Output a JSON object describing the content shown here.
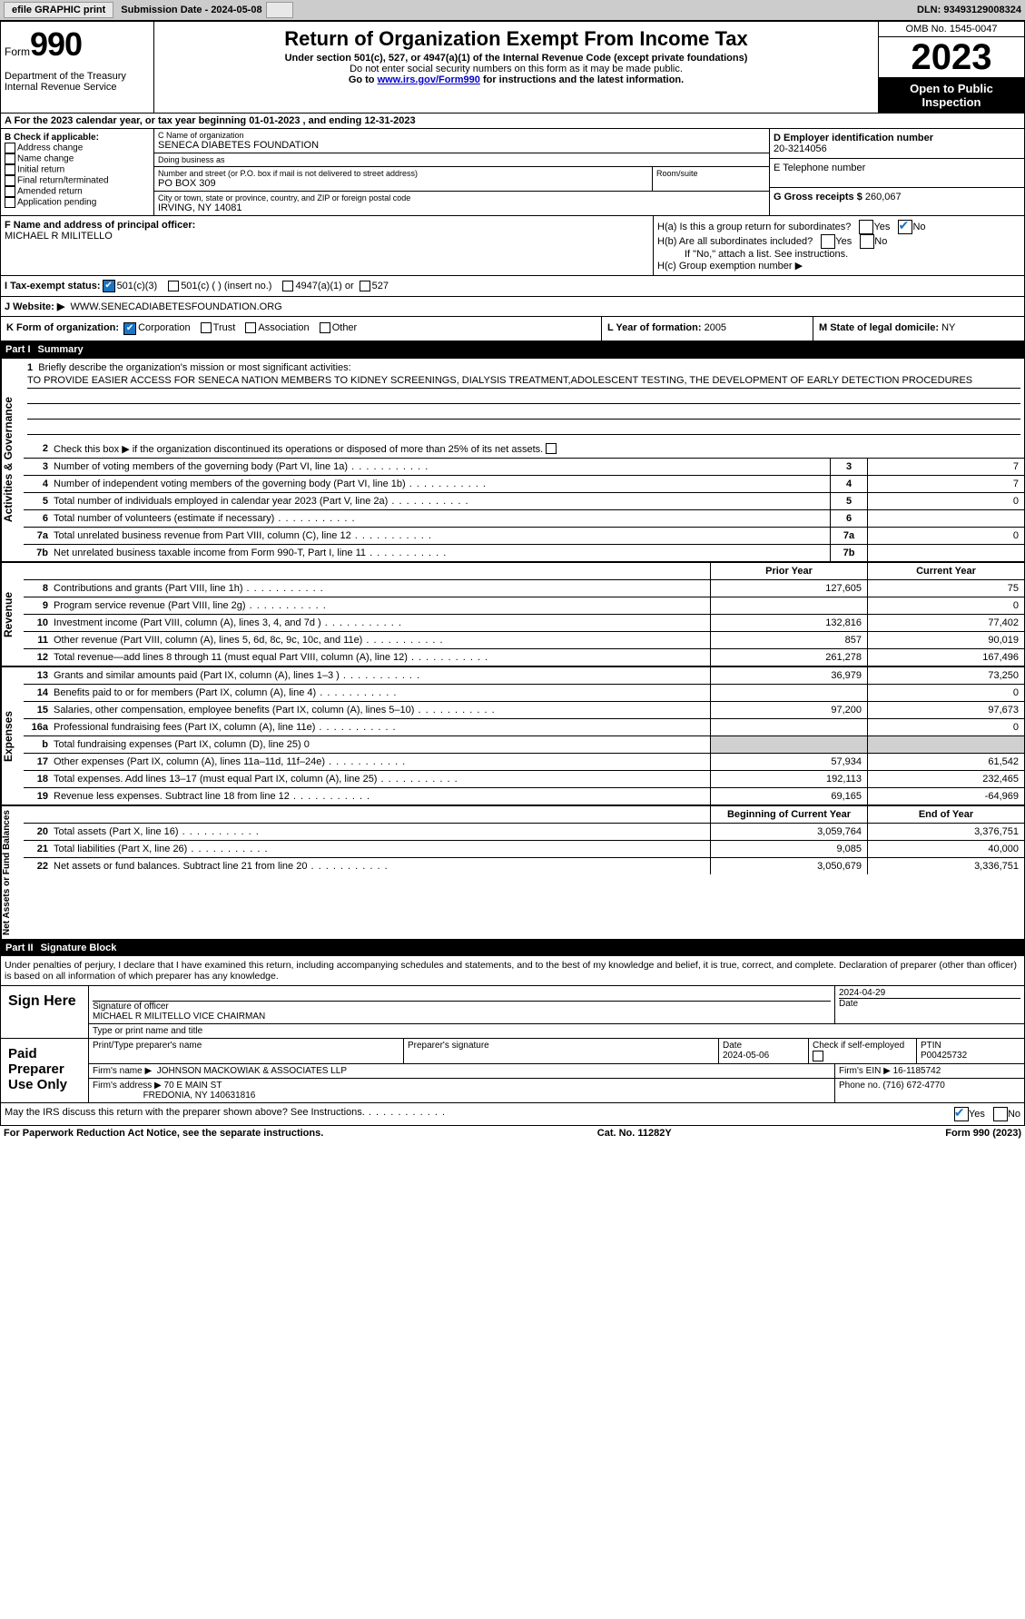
{
  "topbar": {
    "efile": "efile GRAPHIC print",
    "submission": "Submission Date - 2024-05-08",
    "dln": "DLN: 93493129008324"
  },
  "header": {
    "form_label": "Form",
    "form_num": "990",
    "title": "Return of Organization Exempt From Income Tax",
    "subtitle": "Under section 501(c), 527, or 4947(a)(1) of the Internal Revenue Code (except private foundations)",
    "note1": "Do not enter social security numbers on this form as it may be made public.",
    "note2": "Go to www.irs.gov/Form990 for instructions and the latest information.",
    "note2_pre": "Go to ",
    "note2_mid": "www.irs.gov/Form990",
    "note2_post": " for instructions and the latest information.",
    "omb": "OMB No. 1545-0047",
    "year": "2023",
    "inspection": "Open to Public Inspection",
    "dept": "Department of the Treasury",
    "irs": "Internal Revenue Service"
  },
  "rowA": "A For the 2023 calendar year, or tax year beginning 01-01-2023   , and ending 12-31-2023",
  "boxB": {
    "hdr": "B Check if applicable:",
    "items": [
      "Address change",
      "Name change",
      "Initial return",
      "Final return/terminated",
      "Amended return",
      "Application pending"
    ]
  },
  "boxC": {
    "name_label": "C Name of organization",
    "name": "SENECA DIABETES FOUNDATION",
    "dba_label": "Doing business as",
    "dba": "",
    "addr_label": "Number and street (or P.O. box if mail is not delivered to street address)",
    "addr": "PO BOX 309",
    "room_label": "Room/suite",
    "city_label": "City or town, state or province, country, and ZIP or foreign postal code",
    "city": "IRVING, NY  14081"
  },
  "boxD": {
    "label": "D Employer identification number",
    "value": "20-3214056"
  },
  "boxE": {
    "label": "E Telephone number",
    "value": ""
  },
  "boxG": {
    "label": "G Gross receipts $",
    "value": "260,067"
  },
  "boxF": {
    "label": "F  Name and address of principal officer:",
    "value": "MICHAEL R MILITELLO"
  },
  "boxH": {
    "a": "H(a)  Is this a group return for subordinates?",
    "b": "H(b)  Are all subordinates included?",
    "b_note": "If \"No,\" attach a list. See instructions.",
    "c": "H(c)  Group exemption number  ▶"
  },
  "rowI": {
    "label": "I   Tax-exempt status:",
    "opt1": "501(c)(3)",
    "opt2": "501(c) (  ) (insert no.)",
    "opt3": "4947(a)(1) or",
    "opt4": "527"
  },
  "rowJ": {
    "label": "J   Website: ▶",
    "value": "WWW.SENECADIABETESFOUNDATION.ORG"
  },
  "rowK": {
    "label": "K Form of organization:",
    "opts": [
      "Corporation",
      "Trust",
      "Association",
      "Other"
    ]
  },
  "rowL": {
    "label": "L Year of formation:",
    "value": "2005"
  },
  "rowM": {
    "label": "M State of legal domicile:",
    "value": "NY"
  },
  "part1": {
    "label": "Part I",
    "title": "Summary"
  },
  "summary": {
    "l1_label": "Briefly describe the organization's mission or most significant activities:",
    "l1_text": "TO PROVIDE EASIER ACCESS FOR SENECA NATION MEMBERS TO KIDNEY SCREENINGS, DIALYSIS TREATMENT,ADOLESCENT TESTING, THE DEVELOPMENT OF EARLY DETECTION PROCEDURES",
    "l2": "Check this box ▶         if the organization discontinued its operations or disposed of more than 25% of its net assets.",
    "lines_ag": [
      {
        "n": "3",
        "d": "Number of voting members of the governing body (Part VI, line 1a)",
        "v": "7"
      },
      {
        "n": "4",
        "d": "Number of independent voting members of the governing body (Part VI, line 1b)",
        "v": "7"
      },
      {
        "n": "5",
        "d": "Total number of individuals employed in calendar year 2023 (Part V, line 2a)",
        "v": "0"
      },
      {
        "n": "6",
        "d": "Total number of volunteers (estimate if necessary)",
        "v": ""
      },
      {
        "n": "7a",
        "d": "Total unrelated business revenue from Part VIII, column (C), line 12",
        "v": "0"
      },
      {
        "n": "7b",
        "d": "Net unrelated business taxable income from Form 990-T, Part I, line 11",
        "v": ""
      }
    ],
    "hdr_prior": "Prior Year",
    "hdr_current": "Current Year",
    "revenue": [
      {
        "n": "8",
        "d": "Contributions and grants (Part VIII, line 1h)",
        "p": "127,605",
        "c": "75"
      },
      {
        "n": "9",
        "d": "Program service revenue (Part VIII, line 2g)",
        "p": "",
        "c": "0"
      },
      {
        "n": "10",
        "d": "Investment income (Part VIII, column (A), lines 3, 4, and 7d )",
        "p": "132,816",
        "c": "77,402"
      },
      {
        "n": "11",
        "d": "Other revenue (Part VIII, column (A), lines 5, 6d, 8c, 9c, 10c, and 11e)",
        "p": "857",
        "c": "90,019"
      },
      {
        "n": "12",
        "d": "Total revenue—add lines 8 through 11 (must equal Part VIII, column (A), line 12)",
        "p": "261,278",
        "c": "167,496"
      }
    ],
    "expenses": [
      {
        "n": "13",
        "d": "Grants and similar amounts paid (Part IX, column (A), lines 1–3 )",
        "p": "36,979",
        "c": "73,250"
      },
      {
        "n": "14",
        "d": "Benefits paid to or for members (Part IX, column (A), line 4)",
        "p": "",
        "c": "0"
      },
      {
        "n": "15",
        "d": "Salaries, other compensation, employee benefits (Part IX, column (A), lines 5–10)",
        "p": "97,200",
        "c": "97,673"
      },
      {
        "n": "16a",
        "d": "Professional fundraising fees (Part IX, column (A), line 11e)",
        "p": "",
        "c": "0"
      },
      {
        "n": "b",
        "d": "Total fundraising expenses (Part IX, column (D), line 25) 0",
        "p": "shade",
        "c": "shade"
      },
      {
        "n": "17",
        "d": "Other expenses (Part IX, column (A), lines 11a–11d, 11f–24e)",
        "p": "57,934",
        "c": "61,542"
      },
      {
        "n": "18",
        "d": "Total expenses. Add lines 13–17 (must equal Part IX, column (A), line 25)",
        "p": "192,113",
        "c": "232,465"
      },
      {
        "n": "19",
        "d": "Revenue less expenses. Subtract line 18 from line 12",
        "p": "69,165",
        "c": "-64,969"
      }
    ],
    "hdr_begin": "Beginning of Current Year",
    "hdr_end": "End of Year",
    "netassets": [
      {
        "n": "20",
        "d": "Total assets (Part X, line 16)",
        "p": "3,059,764",
        "c": "3,376,751"
      },
      {
        "n": "21",
        "d": "Total liabilities (Part X, line 26)",
        "p": "9,085",
        "c": "40,000"
      },
      {
        "n": "22",
        "d": "Net assets or fund balances. Subtract line 21 from line 20",
        "p": "3,050,679",
        "c": "3,336,751"
      }
    ]
  },
  "sidelabels": {
    "ag": "Activities & Governance",
    "rev": "Revenue",
    "exp": "Expenses",
    "na": "Net Assets or Fund Balances"
  },
  "part2": {
    "label": "Part II",
    "title": "Signature Block",
    "declaration": "Under penalties of perjury, I declare that I have examined this return, including accompanying schedules and statements, and to the best of my knowledge and belief, it is true, correct, and complete. Declaration of preparer (other than officer) is based on all information of which preparer has any knowledge."
  },
  "sign": {
    "here": "Sign Here",
    "sig_officer": "Signature of officer",
    "officer": "MICHAEL R MILITELLO  VICE CHAIRMAN",
    "type_label": "Type or print name and title",
    "date": "2024-04-29",
    "date_label": "Date"
  },
  "paid": {
    "label": "Paid Preparer Use Only",
    "prep_name_label": "Print/Type preparer's name",
    "prep_sig_label": "Preparer's signature",
    "prep_date_label": "Date",
    "prep_date": "2024-05-06",
    "check_label": "Check         if self-employed",
    "ptin_label": "PTIN",
    "ptin": "P00425732",
    "firm_name_label": "Firm's name    ▶",
    "firm_name": "JOHNSON MACKOWIAK & ASSOCIATES LLP",
    "firm_ein_label": "Firm's EIN ▶",
    "firm_ein": "16-1185742",
    "firm_addr_label": "Firm's address ▶",
    "firm_addr": "70 E MAIN ST",
    "firm_city": "FREDONIA, NY  140631816",
    "phone_label": "Phone no.",
    "phone": "(716) 672-4770"
  },
  "discuss": "May the IRS discuss this return with the preparer shown above? See Instructions.",
  "bottom": {
    "pra": "For Paperwork Reduction Act Notice, see the separate instructions.",
    "cat": "Cat. No. 11282Y",
    "form": "Form 990 (2023)"
  }
}
